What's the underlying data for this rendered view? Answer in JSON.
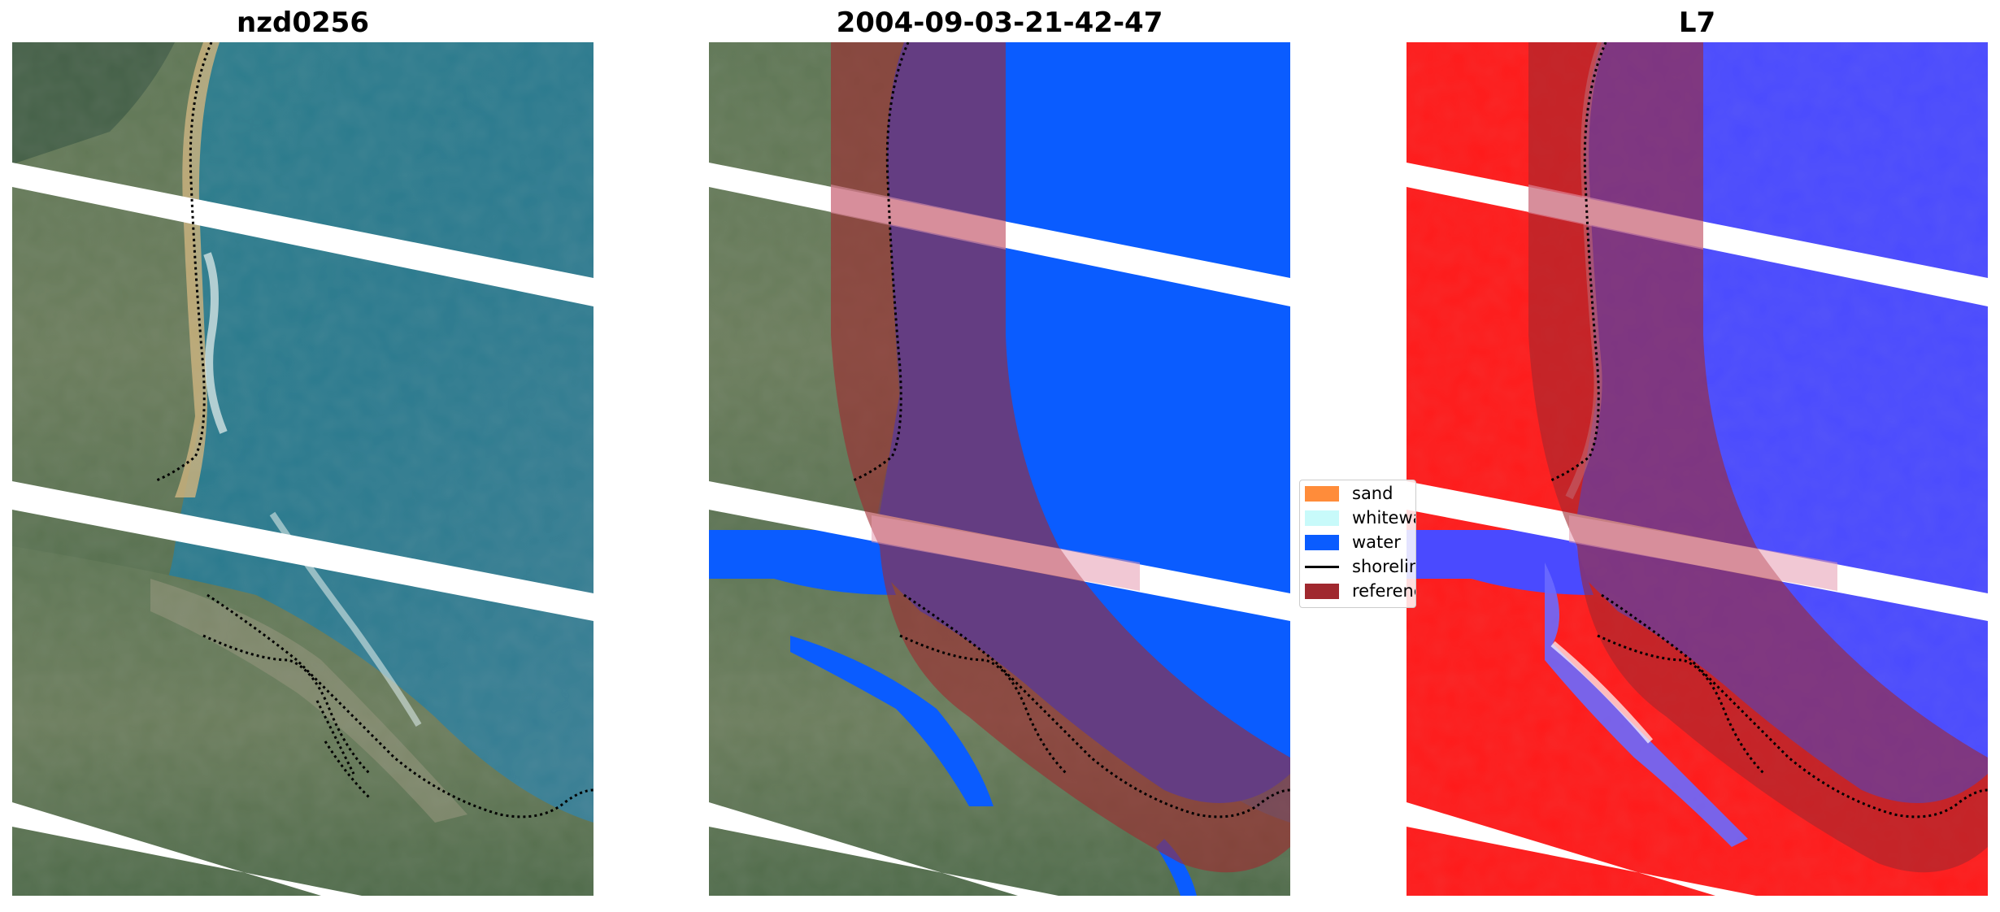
{
  "panels": [
    {
      "title": "nzd0256"
    },
    {
      "title": "2004-09-03-21-42-47"
    },
    {
      "title": "L7"
    }
  ],
  "legend": {
    "items": [
      {
        "label": "sand",
        "color": "#ff8c3a",
        "kind": "patch"
      },
      {
        "label": "whitewater",
        "color": "#c8fafa",
        "kind": "patch"
      },
      {
        "label": "water",
        "color": "#0a5cff",
        "kind": "patch"
      },
      {
        "label": "shoreline",
        "color": "#000000",
        "kind": "line"
      },
      {
        "label": "reference",
        "color": "#a0282e",
        "kind": "patch"
      }
    ]
  },
  "colors": {
    "reference_overlay": "#a0282e",
    "water_class": "#0a5cff",
    "index_positive": "#ff1a1a",
    "index_negative": "#2a2aff",
    "gap_stripes": "#ffffff"
  }
}
